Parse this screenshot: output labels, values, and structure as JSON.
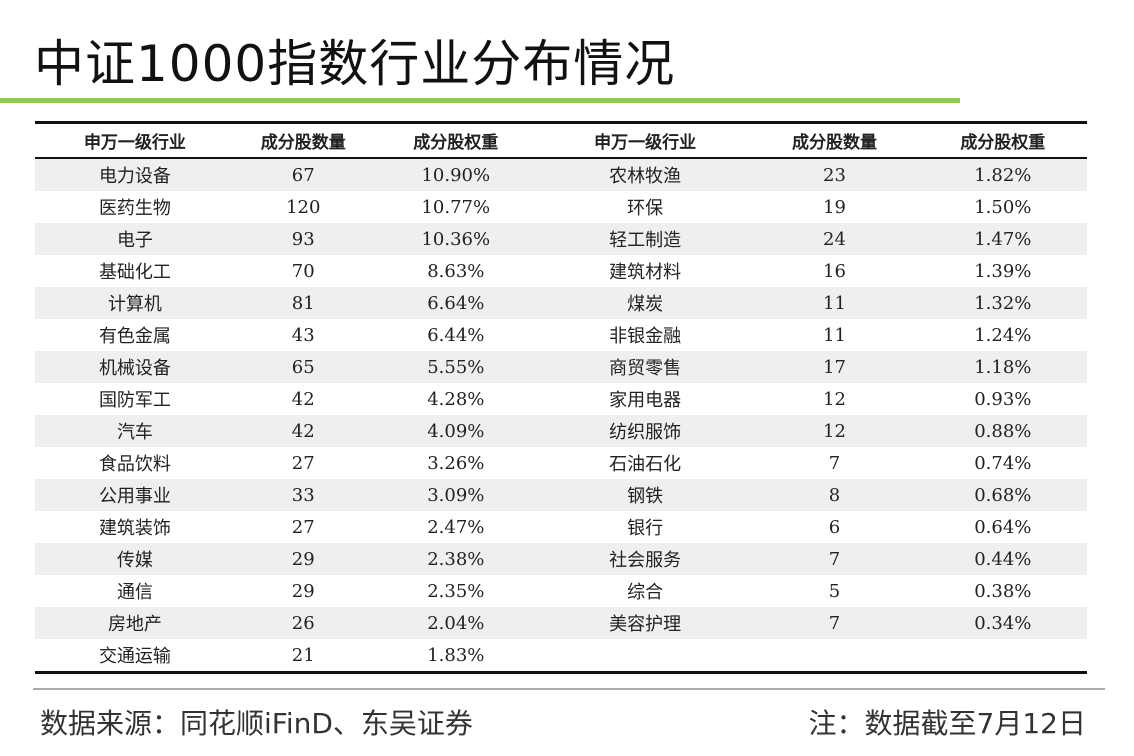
{
  "title": "中证1000指数行业分布情况",
  "table": {
    "headers": [
      "申万一级行业",
      "成分股数量",
      "成分股权重",
      "申万一级行业",
      "成分股数量",
      "成分股权重"
    ],
    "rows": [
      [
        "电力设备",
        "67",
        "10.90%",
        "农林牧渔",
        "23",
        "1.82%"
      ],
      [
        "医药生物",
        "120",
        "10.77%",
        "环保",
        "19",
        "1.50%"
      ],
      [
        "电子",
        "93",
        "10.36%",
        "轻工制造",
        "24",
        "1.47%"
      ],
      [
        "基础化工",
        "70",
        "8.63%",
        "建筑材料",
        "16",
        "1.39%"
      ],
      [
        "计算机",
        "81",
        "6.64%",
        "煤炭",
        "11",
        "1.32%"
      ],
      [
        "有色金属",
        "43",
        "6.44%",
        "非银金融",
        "11",
        "1.24%"
      ],
      [
        "机械设备",
        "65",
        "5.55%",
        "商贸零售",
        "17",
        "1.18%"
      ],
      [
        "国防军工",
        "42",
        "4.28%",
        "家用电器",
        "12",
        "0.93%"
      ],
      [
        "汽车",
        "42",
        "4.09%",
        "纺织服饰",
        "12",
        "0.88%"
      ],
      [
        "食品饮料",
        "27",
        "3.26%",
        "石油石化",
        "7",
        "0.74%"
      ],
      [
        "公用事业",
        "33",
        "3.09%",
        "钢铁",
        "8",
        "0.68%"
      ],
      [
        "建筑装饰",
        "27",
        "2.47%",
        "银行",
        "6",
        "0.64%"
      ],
      [
        "传媒",
        "29",
        "2.38%",
        "社会服务",
        "7",
        "0.44%"
      ],
      [
        "通信",
        "29",
        "2.35%",
        "综合",
        "5",
        "0.38%"
      ],
      [
        "房地产",
        "26",
        "2.04%",
        "美容护理",
        "7",
        "0.34%"
      ],
      [
        "交通运输",
        "21",
        "1.83%",
        "",
        "",
        ""
      ]
    ]
  },
  "footer": {
    "source": "数据来源：同花顺iFinD、东吴证券",
    "note": "注：数据截至7月12日"
  },
  "colors": {
    "accent_line": "#8ccd50",
    "stripe": "#efefef"
  }
}
